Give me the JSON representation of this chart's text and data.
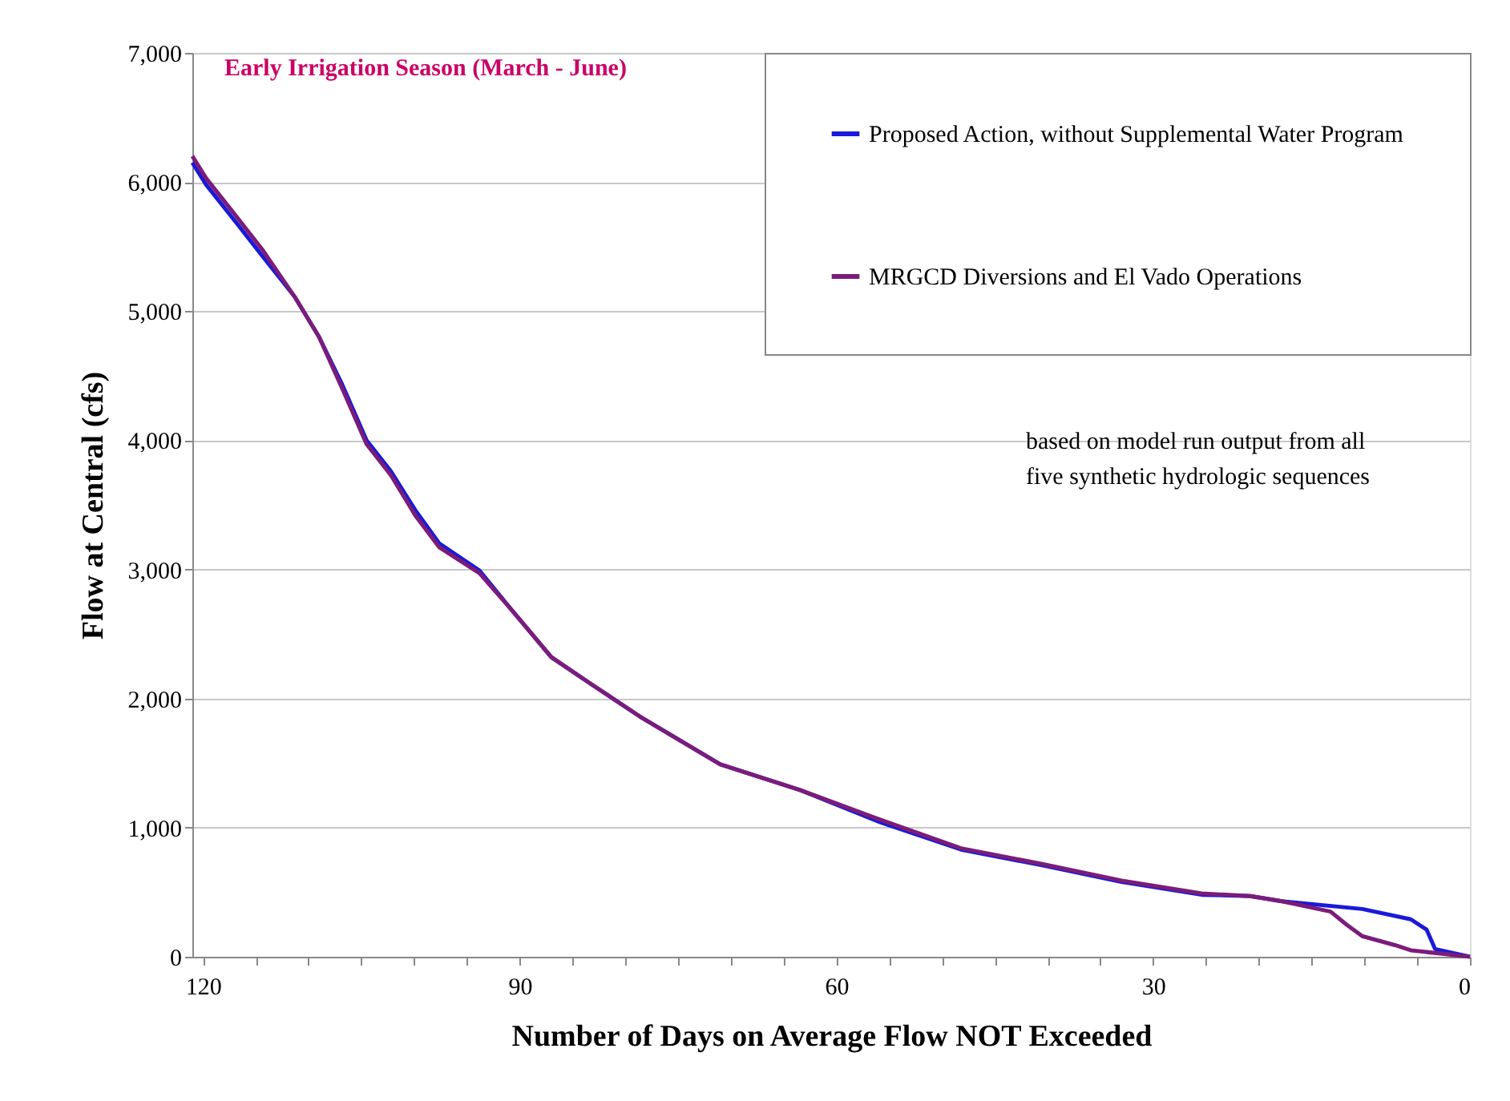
{
  "chart_data": {
    "type": "line",
    "title": "Early Irrigation Season (March - June)",
    "xlabel": "Number of Days on Average Flow NOT Exceeded",
    "ylabel": "Flow at Central (cfs)",
    "xlim": [
      121,
      0
    ],
    "ylim": [
      0,
      7000
    ],
    "xticks": [
      120,
      {
        "value": 115,
        "label": null
      },
      {
        "value": 110,
        "label": null
      },
      {
        "value": 105,
        "label": null
      },
      {
        "value": 100,
        "label": null
      },
      {
        "value": 95,
        "label": null
      },
      90,
      {
        "value": 85,
        "label": null
      },
      {
        "value": 80,
        "label": null
      },
      {
        "value": 75,
        "label": null
      },
      {
        "value": 70,
        "label": null
      },
      {
        "value": 65,
        "label": null
      },
      60,
      {
        "value": 55,
        "label": null
      },
      {
        "value": 50,
        "label": null
      },
      {
        "value": 45,
        "label": null
      },
      {
        "value": 40,
        "label": null
      },
      {
        "value": 35,
        "label": null
      },
      30,
      {
        "value": 25,
        "label": null
      },
      {
        "value": 20,
        "label": null
      },
      {
        "value": 15,
        "label": null
      },
      {
        "value": 10,
        "label": null
      },
      {
        "value": 5,
        "label": null
      },
      0
    ],
    "yticks": [
      {
        "value": 0,
        "label": "0"
      },
      {
        "value": 1000,
        "label": "1,000"
      },
      {
        "value": 2000,
        "label": "2,000"
      },
      {
        "value": 3000,
        "label": "3,000"
      },
      {
        "value": 4000,
        "label": "4,000"
      },
      {
        "value": 5000,
        "label": "5,000"
      },
      {
        "value": 6000,
        "label": "6,000"
      },
      {
        "value": 7000,
        "label": "7,000"
      }
    ],
    "grid": "y",
    "legend": "top right",
    "line_style": "solid",
    "annotations": [
      "based on model run output from all\nfive synthetic hydrologic sequences"
    ],
    "series": [
      {
        "name": "Proposed Action, without Supplemental Water Program",
        "color": "#1a1ad8",
        "x": [
          121,
          119.7,
          116.7,
          114.4,
          111.3,
          109,
          106.8,
          104.5,
          102.2,
          99.9,
          97.6,
          93.8,
          90.8,
          87,
          83.2,
          78.6,
          71,
          63.4,
          55.8,
          48.2,
          40.6,
          33,
          25.4,
          20.8,
          17.8,
          10.2,
          5.6,
          4.1,
          3.3,
          0
        ],
        "values": [
          6150,
          5980,
          5670,
          5430,
          5110,
          4800,
          4430,
          4000,
          3760,
          3460,
          3200,
          2990,
          2690,
          2320,
          2110,
          1860,
          1490,
          1290,
          1040,
          830,
          710,
          580,
          480,
          470,
          430,
          370,
          290,
          210,
          60,
          0
        ]
      },
      {
        "name": "MRGCD Diversions and El Vado Operations",
        "color": "#7b1c7b",
        "x": [
          121,
          119.7,
          116.7,
          114.4,
          111.3,
          109,
          106.8,
          104.5,
          102.2,
          99.9,
          97.6,
          93.8,
          90.8,
          87,
          83.2,
          78.6,
          71,
          63.4,
          55.8,
          48.2,
          40.6,
          33,
          25.4,
          20.8,
          17.8,
          13.2,
          11.7,
          10.2,
          7.1,
          5.6,
          0
        ],
        "values": [
          6200,
          6030,
          5720,
          5480,
          5110,
          4800,
          4400,
          3970,
          3730,
          3420,
          3170,
          2970,
          2690,
          2320,
          2110,
          1860,
          1490,
          1290,
          1060,
          840,
          720,
          590,
          490,
          470,
          430,
          350,
          250,
          160,
          90,
          50,
          0
        ]
      }
    ]
  }
}
